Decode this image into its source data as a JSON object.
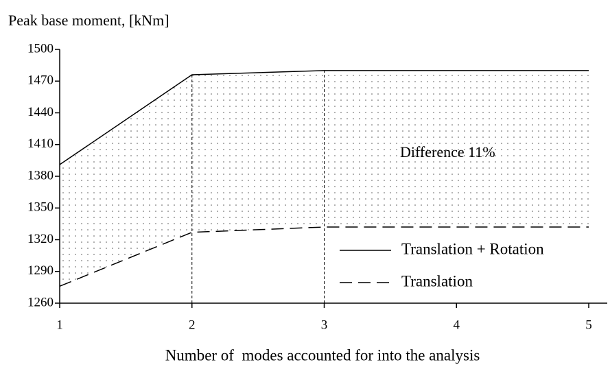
{
  "chart_data": {
    "type": "line",
    "title": "Peak base moment, [kNm]",
    "x_label": "Number of  modes accounted for into the analysis",
    "x": [
      1,
      2,
      3,
      4,
      5
    ],
    "series": [
      {
        "name": "Translation + Rotation",
        "color": "#000000",
        "dash": "solid",
        "values": [
          1391,
          1476,
          1480,
          1480,
          1480
        ]
      },
      {
        "name": "Translation",
        "color": "#000000",
        "dash": "dashed",
        "values": [
          1276,
          1327,
          1332,
          1332,
          1332
        ]
      }
    ],
    "annotation": "Difference 11%",
    "xlim": [
      1,
      5.14
    ],
    "ylim": [
      1260,
      1500
    ],
    "xticks": [
      1,
      2,
      3,
      4,
      5
    ],
    "yticks": [
      1260,
      1290,
      1320,
      1350,
      1380,
      1410,
      1440,
      1470,
      1500
    ],
    "fill_between": true,
    "legend": "lower right"
  }
}
